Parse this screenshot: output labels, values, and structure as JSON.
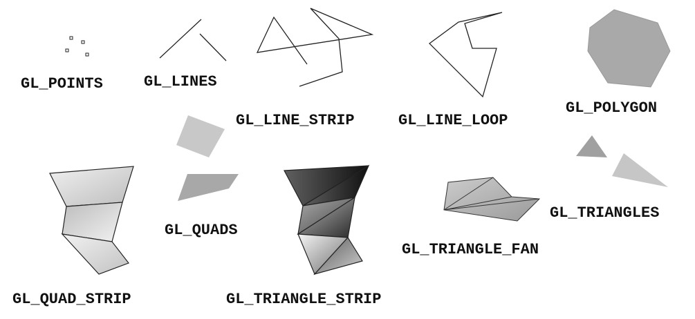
{
  "labels": {
    "points": "GL_POINTS",
    "lines": "GL_LINES",
    "line_strip": "GL_LINE_STRIP",
    "line_loop": "GL_LINE_LOOP",
    "polygon": "GL_POLYGON",
    "quads": "GL_QUADS",
    "quad_strip": "GL_QUAD_STRIP",
    "triangle_strip": "GL_TRIANGLE_STRIP",
    "triangle_fan": "GL_TRIANGLE_FAN",
    "triangles": "GL_TRIANGLES"
  },
  "colors": {
    "stroke": "#222222",
    "polygon_fill": "#a9a9a9",
    "quad_fill_light": "#c8c8c8",
    "quad_fill_dark": "#a8a8a8",
    "triangle_fill_dark": "#a0a0a0",
    "triangle_fill_light": "#c6c6c6"
  }
}
